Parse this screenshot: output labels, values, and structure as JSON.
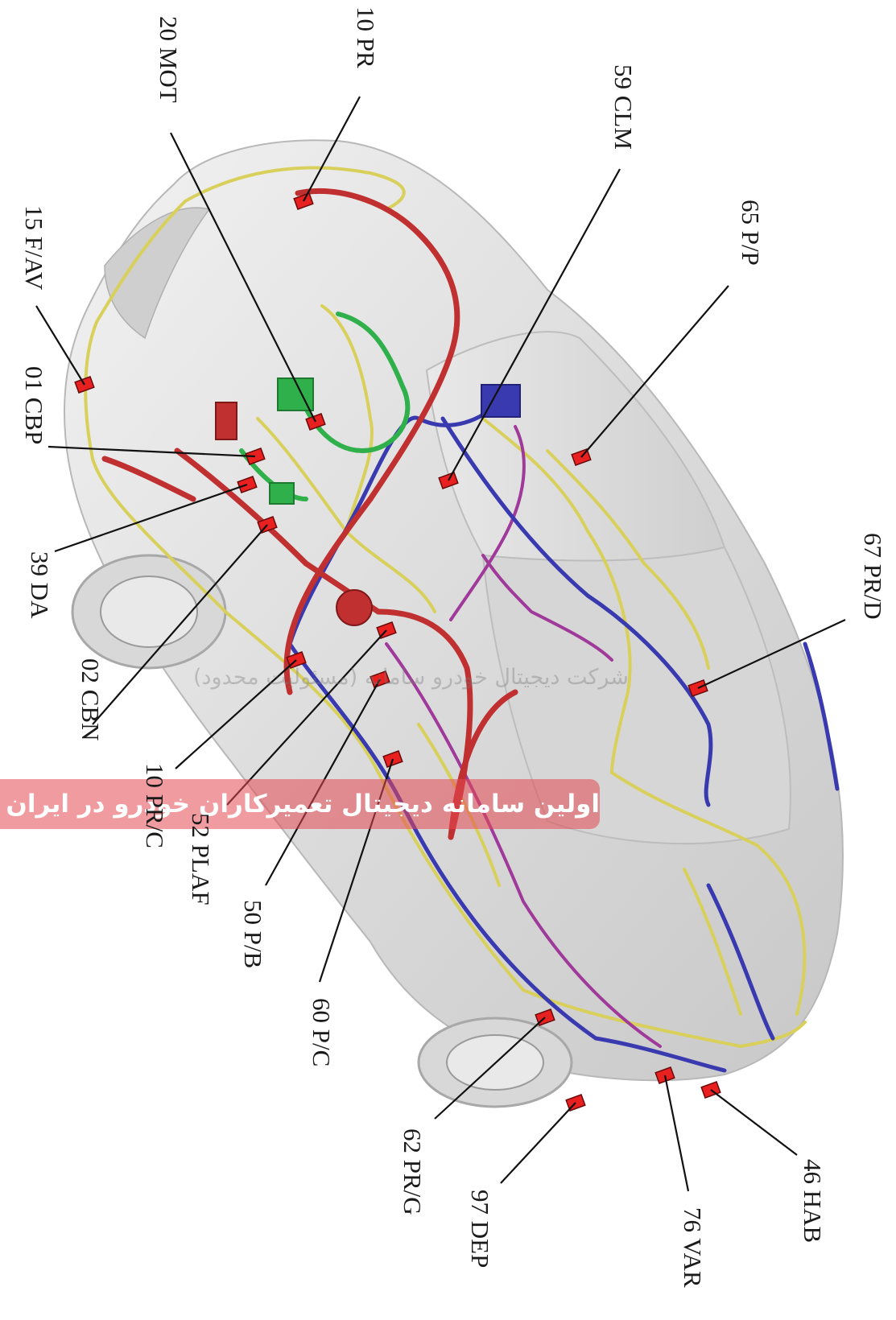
{
  "watermark": {
    "line1": "شرکت دیجیتال خودرو سامانه (مسئولیت محدود)",
    "line2": "اولین سامانه دیجیتال تعمیرکاران خودرو در ایران"
  },
  "colors": {
    "harness_red": "#c03030",
    "harness_blue": "#3a3ab0",
    "harness_yellow": "#d8d05a",
    "harness_green": "#2fb04a",
    "harness_purple": "#a03a9a",
    "connector": "#e82020",
    "leader": "#111111"
  },
  "labels": [
    {
      "id": "10-pr",
      "text": "10 PR"
    },
    {
      "id": "20-mot",
      "text": "20 MOT"
    },
    {
      "id": "59-clm",
      "text": "59 CLM"
    },
    {
      "id": "65-pp",
      "text": "65 P/P"
    },
    {
      "id": "15-fav",
      "text": "15 F/AV"
    },
    {
      "id": "01-cbp",
      "text": "01 CBP"
    },
    {
      "id": "39-da",
      "text": "39 DA"
    },
    {
      "id": "02-cbn",
      "text": "02 CBN"
    },
    {
      "id": "10-prc",
      "text": "10 PR/C"
    },
    {
      "id": "52-plaf",
      "text": "52 PLAF"
    },
    {
      "id": "50-pb",
      "text": "50 P/B"
    },
    {
      "id": "60-pc",
      "text": "60 P/C"
    },
    {
      "id": "67-prd",
      "text": "67 PR/D"
    },
    {
      "id": "62-prg",
      "text": "62 PR/G"
    },
    {
      "id": "97-dep",
      "text": "97 DEP"
    },
    {
      "id": "76-var",
      "text": "76 VAR"
    },
    {
      "id": "46-hab",
      "text": "46 HAB"
    }
  ]
}
